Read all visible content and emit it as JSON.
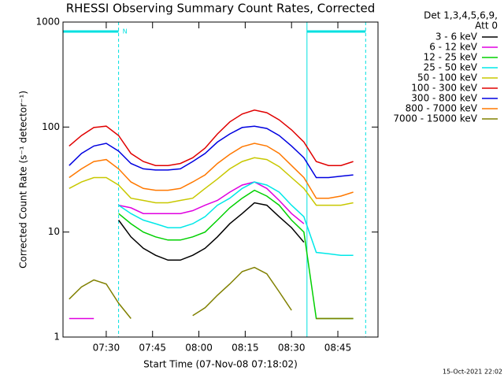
{
  "chart_data": {
    "type": "line",
    "title": "RHESSI Observing Summary Count Rates, Corrected",
    "x_label": "Start Time (07-Nov-08 07:18:02)",
    "y_label": "Corrected Count Rate (s⁻¹ detector⁻¹)",
    "legend_header": [
      "Det 1,3,4,5,6,9,",
      "Att 0"
    ],
    "footer": "15-Oct-2021 22:02",
    "log_y": true,
    "x": [
      "07:18",
      "07:22",
      "07:26",
      "07:30",
      "07:34",
      "07:38",
      "07:42",
      "07:46",
      "07:50",
      "07:54",
      "07:58",
      "08:02",
      "08:06",
      "08:10",
      "08:14",
      "08:18",
      "08:22",
      "08:26",
      "08:30",
      "08:34",
      "08:38",
      "08:42",
      "08:46",
      "08:50"
    ],
    "xlim": [
      "07:16",
      "08:58"
    ],
    "xticks": [
      "07:30",
      "07:45",
      "08:00",
      "08:15",
      "08:30",
      "08:45"
    ],
    "ylim": [
      1,
      1000
    ],
    "yticks": [
      1,
      10,
      100,
      1000
    ],
    "intervals": [
      {
        "start": "07:16",
        "end": "07:34",
        "label": "N",
        "color": "#00e0e0"
      },
      {
        "start": "08:35",
        "end": "08:54",
        "color": "#00e0e0"
      }
    ],
    "series": [
      {
        "name": "3 - 6 keV",
        "color": "#000000",
        "values": [
          null,
          null,
          null,
          null,
          13,
          9,
          7,
          6,
          5.4,
          5.4,
          6,
          7,
          9,
          12,
          15,
          19,
          18,
          14,
          11,
          8,
          null,
          null,
          null,
          null
        ]
      },
      {
        "name": "6 - 12 keV",
        "color": "#e000e0",
        "values": [
          1.5,
          1.5,
          1.5,
          null,
          18,
          17,
          15,
          15,
          15,
          15,
          16,
          18,
          20,
          24,
          28,
          30,
          26,
          20,
          15,
          12,
          null,
          null,
          null,
          null
        ]
      },
      {
        "name": "12 - 25 keV",
        "color": "#00d000",
        "values": [
          null,
          null,
          null,
          null,
          15,
          12,
          10,
          9,
          8.4,
          8.4,
          9,
          10,
          13,
          17,
          21,
          25,
          22,
          18,
          13,
          10,
          1.5,
          1.5,
          1.5,
          1.5
        ]
      },
      {
        "name": "25 - 50 keV",
        "color": "#00e8e8",
        "values": [
          null,
          null,
          null,
          null,
          18,
          15,
          13,
          12,
          11,
          11,
          12,
          14,
          18,
          21,
          26,
          30,
          28,
          24,
          18,
          14,
          6.4,
          6.2,
          6,
          6
        ]
      },
      {
        "name": "50 - 100 keV",
        "color": "#c8c800",
        "values": [
          26,
          30,
          33,
          33,
          28,
          21,
          20,
          19,
          19,
          20,
          21,
          26,
          32,
          40,
          47,
          51,
          49,
          42,
          33,
          26,
          18,
          18,
          18,
          19
        ]
      },
      {
        "name": "100 - 300 keV",
        "color": "#e00000",
        "values": [
          66,
          83,
          99,
          102,
          83,
          56,
          47,
          43,
          43,
          45,
          51,
          63,
          86,
          112,
          133,
          145,
          137,
          117,
          94,
          72,
          47,
          43,
          43,
          47
        ]
      },
      {
        "name": "300 - 800 keV",
        "color": "#0000e0",
        "values": [
          43,
          56,
          66,
          70,
          59,
          45,
          40,
          39,
          39,
          40,
          47,
          56,
          72,
          86,
          99,
          102,
          97,
          83,
          66,
          51,
          33,
          33,
          34,
          35
        ]
      },
      {
        "name": "800 - 7000 keV",
        "color": "#ff7800",
        "values": [
          33,
          40,
          47,
          49,
          40,
          30,
          26,
          25,
          25,
          26,
          30,
          35,
          45,
          55,
          65,
          70,
          66,
          56,
          43,
          33,
          21,
          21,
          22,
          24
        ]
      },
      {
        "name": "7000 - 15000 keV",
        "color": "#808000",
        "values": [
          2.3,
          3,
          3.5,
          3.2,
          2.1,
          1.5,
          null,
          null,
          null,
          null,
          1.6,
          1.9,
          2.5,
          3.2,
          4.2,
          4.6,
          4,
          2.7,
          1.8,
          null,
          1.5,
          1.5,
          1.5,
          1.5
        ]
      }
    ]
  }
}
